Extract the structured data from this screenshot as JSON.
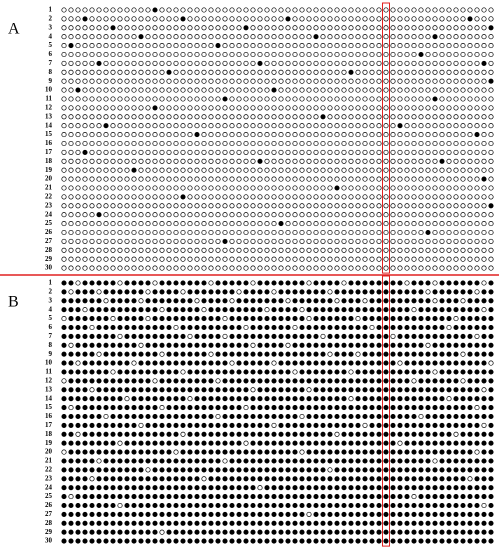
{
  "panels": [
    {
      "label": "A",
      "rows": [
        {
          "label": "1",
          "sites": "00000000000001000000000000000000000000000000000000000000000000"
        },
        {
          "label": "2",
          "sites": "00010000000000000100000000000000100000000000000000000000001000"
        },
        {
          "label": "3",
          "sites": "00000001000000000000000000100000000000000000000000000000000001"
        },
        {
          "label": "4",
          "sites": "00000000000100000000000000000000000010000000000000000100000000"
        },
        {
          "label": "5",
          "sites": "01000000000000000000001000000000000000000000000000000000000000"
        },
        {
          "label": "6",
          "sites": "00000000000000000000000000000000000000000000000000010000000000"
        },
        {
          "label": "7",
          "sites": "00000100000000000000000000001000000000000000000000000000000010"
        },
        {
          "label": "8",
          "sites": "00000000000000010000000000000000000000000100000000000000000000"
        },
        {
          "label": "9",
          "sites": "00000000000000000000000000000000000000000000000000000000000001"
        },
        {
          "label": "10",
          "sites": "00100000000000000000000000000010000000000000000000000000000000"
        },
        {
          "label": "11",
          "sites": "00000000000000000000000100000000000000000000000000000100000000"
        },
        {
          "label": "12",
          "sites": "00000000000001000000000000000000000000000000000000000000000000"
        },
        {
          "label": "13",
          "sites": "00000000000000000000000000000000000001000000000000000000000000"
        },
        {
          "label": "14",
          "sites": "00000010000000000000000000000000000000000000000010000000000000"
        },
        {
          "label": "15",
          "sites": "00000000000000000001000000000000000000000000000000000000000100"
        },
        {
          "label": "16",
          "sites": "00000000000000000000000000000000000000000000000000000000000000"
        },
        {
          "label": "17",
          "sites": "00010000000000000000000000000000000000000000000000000000000000"
        },
        {
          "label": "18",
          "sites": "00000000000000000000000000001000000000000000000000000010000000"
        },
        {
          "label": "19",
          "sites": "00000000001000000000000000000000000000000000000000000000000000"
        },
        {
          "label": "20",
          "sites": "00000000000000000000000000000000000000000000000000000000000010"
        },
        {
          "label": "21",
          "sites": "00000000000000000000000000000000000000010000000000000000000000"
        },
        {
          "label": "22",
          "sites": "00000000000000000100000000000000000000000000000000000000000000"
        },
        {
          "label": "23",
          "sites": "00000000000000000000000000000000000000000000000000000000000001"
        },
        {
          "label": "24",
          "sites": "00000100000000000000000000000000000000000000000000000000000000"
        },
        {
          "label": "25",
          "sites": "00000000000000000000000000000001000000000000000000000000000000"
        },
        {
          "label": "26",
          "sites": "00000000000000000000000000000000000000000000000000001000000000"
        },
        {
          "label": "27",
          "sites": "00000000000000000000000100000000000000000000000000000000000000"
        },
        {
          "label": "28",
          "sites": "00000000000000000000000000000000000000000000000000000000000000"
        },
        {
          "label": "29",
          "sites": "00000000000000000000000000000000000000000000000000000000000000"
        },
        {
          "label": "30",
          "sites": "00000000000000000000000000000000000000000000000000000000000000"
        }
      ]
    },
    {
      "label": "B",
      "rows": [
        {
          "label": "1",
          "sites": "11011111011110111111101111101111111011110111111110111011111101"
        },
        {
          "label": "2",
          "sites": "10111011111101111011111110111101111111011111111111110111111011"
        },
        {
          "label": "3",
          "sites": "11111101111011111110111101111111011111101110111111111011101111"
        },
        {
          "label": "4",
          "sites": "11101111111111011111011111111011110111111111111111011111111101"
        },
        {
          "label": "5",
          "sites": "01111110111101111111111011111111111011111101111111111111011111"
        },
        {
          "label": "6",
          "sites": "11110111111111110111111111011111101111111111011111111110111111"
        },
        {
          "label": "7",
          "sites": "11111111011111111101111011111111111110111111111011111111111011"
        },
        {
          "label": "8",
          "sites": "10111111111011111111111111101111011111111111111111110111111111"
        },
        {
          "label": "9",
          "sites": "11111011111111011111101111111111111111011101111111111111101111"
        },
        {
          "label": "10",
          "sites": "11011111110111111111111101111101111111111111111101111111111110"
        },
        {
          "label": "11",
          "sites": "11111110111111111011111111111111101111111011111111111011111111"
        },
        {
          "label": "12",
          "sites": "01111111111110111111110111111111111111111111111111011111101111"
        },
        {
          "label": "13",
          "sites": "11110111111111111111111111101111111011111111111111111111111101"
        },
        {
          "label": "14",
          "sites": "11111111101111111101111111111111111111111011111111111110111111"
        },
        {
          "label": "15",
          "sites": "10111111111111011111111111011111111111111111111111111111111011"
        },
        {
          "label": "16",
          "sites": "11111101111111111111110111111111110111111111111111101111111111"
        },
        {
          "label": "17",
          "sites": "11111111111011111111111111111101111111111110111111111111111101"
        },
        {
          "label": "18",
          "sites": "11011111111111111011111111111111111111101111111111111111011111"
        },
        {
          "label": "19",
          "sites": "11111111011111111111111111011111111111111111111101111111111111"
        },
        {
          "label": "20",
          "sites": "01111111111111110111111111111111110111111111111111111111111011"
        },
        {
          "label": "21",
          "sites": "11111011111111111111111011111111111111111111111111111011111111"
        },
        {
          "label": "22",
          "sites": "11111111111101111111111111111111111111011111111111111111111111"
        },
        {
          "label": "23",
          "sites": "11110111111111111111011111111111111111111111111111111111110111"
        },
        {
          "label": "24",
          "sites": "11111111111111111111111111110111111111111111111111111111111111"
        },
        {
          "label": "25",
          "sites": "10111111111111111111111111111111111111111111111111011111111111"
        },
        {
          "label": "26",
          "sites": "11111111011111111111111111111111111111111111111111111111111101"
        },
        {
          "label": "27",
          "sites": "11111111111111111111111111111111111011111111111111111111111111"
        },
        {
          "label": "28",
          "sites": "11111111111111111111111111111111111111111111111111111111111111"
        },
        {
          "label": "29",
          "sites": "11111111111111011111111111111111111111111111111111111111111111"
        },
        {
          "label": "30",
          "sites": "11111111111111111111111111111111111111111111111111111111111111"
        }
      ]
    }
  ]
}
